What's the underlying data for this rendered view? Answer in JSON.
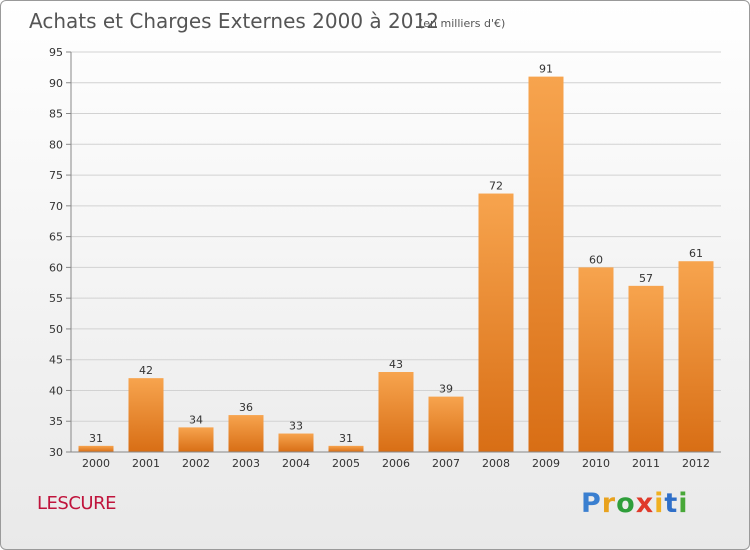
{
  "chart_data": {
    "type": "bar",
    "title": "Achats et Charges Externes 2000 à 2012",
    "subtitle": "(en milliers d'€)",
    "categories": [
      "2000",
      "2001",
      "2002",
      "2003",
      "2004",
      "2005",
      "2006",
      "2007",
      "2008",
      "2009",
      "2010",
      "2011",
      "2012"
    ],
    "values": [
      31,
      42,
      34,
      36,
      33,
      31,
      43,
      39,
      72,
      91,
      60,
      57,
      61
    ],
    "ylim": [
      30,
      95
    ],
    "yticks": [
      30,
      35,
      40,
      45,
      50,
      55,
      60,
      65,
      70,
      75,
      80,
      85,
      90,
      95
    ],
    "grid": true,
    "bar_color": "#f08a2c"
  },
  "commune": "LESCURE",
  "logo": {
    "letters": [
      "P",
      "r",
      "o",
      "x",
      "i",
      "t",
      "i"
    ],
    "colors": [
      "#3a7fd0",
      "#e8a21e",
      "#2e9e3a",
      "#e03a2a",
      "#f0b020",
      "#2f6fc8",
      "#48a838"
    ]
  }
}
